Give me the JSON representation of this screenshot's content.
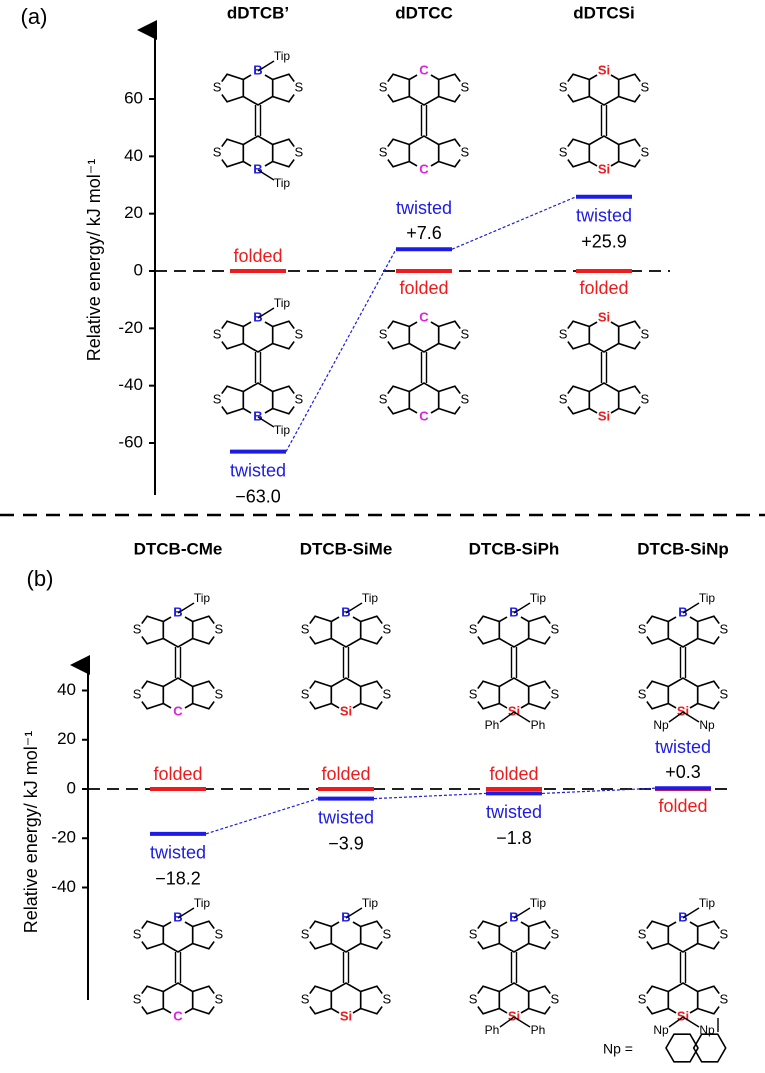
{
  "chart_data": [
    {
      "type": "energy_level",
      "label": "(a)",
      "y_label": "Relative energy/ kJ mol⁻¹",
      "ylim": [
        -78,
        84
      ],
      "yticks": [
        -60,
        -40,
        -20,
        0,
        20,
        40,
        60
      ],
      "categories": [
        "dDTCB’",
        "dDTCC",
        "dDTCSi"
      ],
      "series": [
        {
          "name": "folded",
          "color": "#ee1c1c",
          "values": [
            0,
            0,
            0
          ]
        },
        {
          "name": "twisted",
          "color": "#1c1ce6",
          "values": [
            -63.0,
            7.6,
            25.9
          ],
          "value_labels": [
            "−63.0",
            "+7.6",
            "+25.9"
          ]
        }
      ],
      "structures": [
        [
          [
            {
              "s": [
                "S",
                "S"
              ],
              "center": "B",
              "color": "#1c1ce6",
              "subs": [
                "Tip"
              ]
            },
            {
              "s": [
                "S",
                "S"
              ],
              "center": "B",
              "color": "#1c1ce6",
              "subs": [
                "Tip"
              ]
            }
          ],
          [
            {
              "s": [
                "S",
                "S"
              ],
              "center": "B",
              "color": "#1c1ce6",
              "subs": [
                "Tip"
              ]
            },
            {
              "s": [
                "S",
                "S"
              ],
              "center": "B",
              "color": "#1c1ce6",
              "subs": [
                "Tip"
              ]
            }
          ]
        ],
        [
          [
            {
              "s": [
                "S",
                "S"
              ],
              "center": "C",
              "color": "#e020e0",
              "subs": []
            },
            {
              "s": [
                "S",
                "S"
              ],
              "center": "C",
              "color": "#e020e0",
              "subs": []
            }
          ],
          [
            {
              "s": [
                "S",
                "S"
              ],
              "center": "C",
              "color": "#e020e0",
              "subs": []
            },
            {
              "s": [
                "S",
                "S"
              ],
              "center": "C",
              "color": "#e020e0",
              "subs": []
            }
          ]
        ],
        [
          [
            {
              "s": [
                "S",
                "S"
              ],
              "center": "Si",
              "color": "#ee1c1c",
              "subs": []
            },
            {
              "s": [
                "S",
                "S"
              ],
              "center": "Si",
              "color": "#ee1c1c",
              "subs": []
            }
          ],
          [
            {
              "s": [
                "S",
                "S"
              ],
              "center": "Si",
              "color": "#ee1c1c",
              "subs": []
            },
            {
              "s": [
                "S",
                "S"
              ],
              "center": "Si",
              "color": "#ee1c1c",
              "subs": []
            }
          ]
        ]
      ]
    },
    {
      "type": "energy_level",
      "label": "(b)",
      "y_label": "Relative energy/ kJ mol⁻¹",
      "ylim": [
        -86,
        50
      ],
      "yticks": [
        -40,
        -20,
        0,
        20,
        40
      ],
      "categories": [
        "DTCB-CMe",
        "DTCB-SiMe",
        "DTCB-SiPh",
        "DTCB-SiNp"
      ],
      "series": [
        {
          "name": "folded",
          "color": "#ee1c1c",
          "values": [
            0,
            0,
            0,
            0
          ]
        },
        {
          "name": "twisted",
          "color": "#1c1ce6",
          "values": [
            -18.2,
            -3.9,
            -1.8,
            0.3
          ],
          "value_labels": [
            "−18.2",
            "−3.9",
            "−1.8",
            "+0.3"
          ]
        }
      ],
      "structures": [
        [
          [
            {
              "s": [
                "S",
                "S"
              ],
              "center": "B",
              "color": "#1c1ce6",
              "subs": [
                "Tip"
              ]
            },
            {
              "s": [
                "S",
                "S"
              ],
              "center": "C",
              "color": "#e020e0",
              "subs": []
            }
          ],
          [
            {
              "s": [
                "S",
                "S"
              ],
              "center": "B",
              "color": "#1c1ce6",
              "subs": [
                "Tip"
              ]
            },
            {
              "s": [
                "S",
                "S"
              ],
              "center": "C",
              "color": "#e020e0",
              "subs": []
            }
          ]
        ],
        [
          [
            {
              "s": [
                "S",
                "S"
              ],
              "center": "B",
              "color": "#1c1ce6",
              "subs": [
                "Tip"
              ]
            },
            {
              "s": [
                "S",
                "S"
              ],
              "center": "Si",
              "color": "#ee1c1c",
              "subs": []
            }
          ],
          [
            {
              "s": [
                "S",
                "S"
              ],
              "center": "B",
              "color": "#1c1ce6",
              "subs": [
                "Tip"
              ]
            },
            {
              "s": [
                "S",
                "S"
              ],
              "center": "Si",
              "color": "#ee1c1c",
              "subs": []
            }
          ]
        ],
        [
          [
            {
              "s": [
                "S",
                "S"
              ],
              "center": "B",
              "color": "#1c1ce6",
              "subs": [
                "Tip"
              ]
            },
            {
              "s": [
                "S",
                "S"
              ],
              "center": "Si",
              "color": "#ee1c1c",
              "subs": [
                "Ph",
                "Ph"
              ]
            }
          ],
          [
            {
              "s": [
                "S",
                "S"
              ],
              "center": "B",
              "color": "#1c1ce6",
              "subs": [
                "Tip"
              ]
            },
            {
              "s": [
                "S",
                "S"
              ],
              "center": "Si",
              "color": "#ee1c1c",
              "subs": [
                "Ph",
                "Ph"
              ]
            }
          ]
        ],
        [
          [
            {
              "s": [
                "S",
                "S"
              ],
              "center": "B",
              "color": "#1c1ce6",
              "subs": [
                "Tip"
              ]
            },
            {
              "s": [
                "S",
                "S"
              ],
              "center": "Si",
              "color": "#ee1c1c",
              "subs": [
                "Np",
                "Np"
              ]
            }
          ],
          [
            {
              "s": [
                "S",
                "S"
              ],
              "center": "B",
              "color": "#1c1ce6",
              "subs": [
                "Tip"
              ]
            },
            {
              "s": [
                "S",
                "S"
              ],
              "center": "Si",
              "color": "#ee1c1c",
              "subs": [
                "Np",
                "Np"
              ]
            }
          ]
        ]
      ],
      "np_legend": "Np ="
    }
  ]
}
